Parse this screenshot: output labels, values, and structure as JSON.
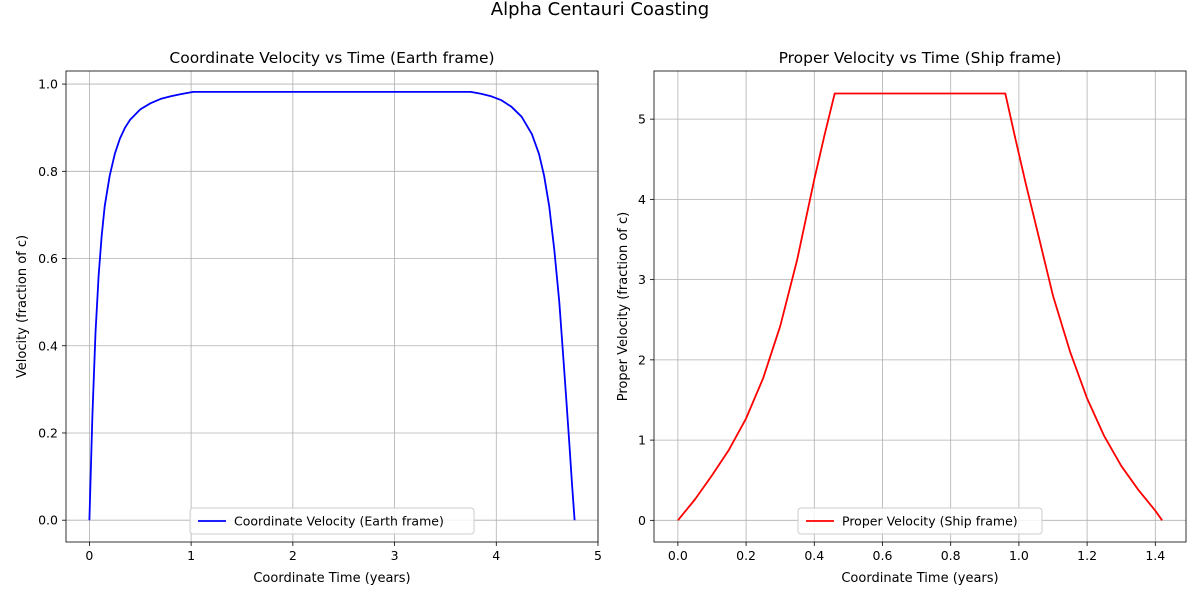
{
  "figure": {
    "suptitle": "Alpha Centauri Coasting"
  },
  "chart_data": [
    {
      "type": "line",
      "title": "Coordinate Velocity vs Time (Earth frame)",
      "xlabel": "Coordinate Time (years)",
      "ylabel": "Velocity (fraction of c)",
      "xlim": [
        -0.23,
        5.0
      ],
      "ylim": [
        -0.05,
        1.03
      ],
      "xticks": [
        0,
        1,
        2,
        3,
        4,
        5
      ],
      "xtick_labels": [
        "0",
        "1",
        "2",
        "3",
        "4",
        "5"
      ],
      "yticks": [
        0,
        0.2,
        0.4,
        0.6,
        0.8,
        1.0
      ],
      "ytick_labels": [
        "0.0",
        "0.2",
        "0.4",
        "0.6",
        "0.8",
        "1.0"
      ],
      "grid": true,
      "legend_position": "lower center",
      "series": [
        {
          "name": "Coordinate Velocity (Earth frame)",
          "color": "#0000ff",
          "x": [
            0,
            0.03,
            0.06,
            0.09,
            0.12,
            0.15,
            0.2,
            0.25,
            0.3,
            0.35,
            0.4,
            0.5,
            0.6,
            0.7,
            0.8,
            0.9,
            1.02,
            1.5,
            2.0,
            2.5,
            3.0,
            3.5,
            3.75,
            3.85,
            3.95,
            4.05,
            4.15,
            4.25,
            4.35,
            4.42,
            4.47,
            4.52,
            4.57,
            4.62,
            4.66,
            4.69,
            4.72,
            4.745,
            4.77
          ],
          "y": [
            0.0,
            0.24,
            0.43,
            0.56,
            0.65,
            0.72,
            0.79,
            0.84,
            0.875,
            0.9,
            0.918,
            0.942,
            0.956,
            0.966,
            0.972,
            0.977,
            0.982,
            0.982,
            0.982,
            0.982,
            0.982,
            0.982,
            0.982,
            0.978,
            0.972,
            0.963,
            0.948,
            0.925,
            0.885,
            0.84,
            0.79,
            0.72,
            0.62,
            0.5,
            0.37,
            0.27,
            0.17,
            0.08,
            0.0
          ]
        }
      ]
    },
    {
      "type": "line",
      "title": "Proper Velocity vs Time (Ship frame)",
      "xlabel": "Coordinate Time (years)",
      "ylabel": "Proper Velocity (fraction of c)",
      "xlim": [
        -0.07,
        1.49
      ],
      "ylim": [
        -0.27,
        5.6
      ],
      "xticks": [
        0,
        0.2,
        0.4,
        0.6,
        0.8,
        1.0,
        1.2,
        1.4
      ],
      "xtick_labels": [
        "0.0",
        "0.2",
        "0.4",
        "0.6",
        "0.8",
        "1.0",
        "1.2",
        "1.4"
      ],
      "yticks": [
        0,
        1,
        2,
        3,
        4,
        5
      ],
      "ytick_labels": [
        "0",
        "1",
        "2",
        "3",
        "4",
        "5"
      ],
      "grid": true,
      "legend_position": "lower center",
      "series": [
        {
          "name": "Proper Velocity (Ship frame)",
          "color": "#ff0000",
          "x": [
            0,
            0.05,
            0.1,
            0.15,
            0.2,
            0.25,
            0.3,
            0.35,
            0.4,
            0.43,
            0.46,
            0.6,
            0.8,
            0.96,
            0.99,
            1.02,
            1.06,
            1.1,
            1.15,
            1.2,
            1.25,
            1.3,
            1.35,
            1.4,
            1.42
          ],
          "y": [
            0.0,
            0.26,
            0.56,
            0.88,
            1.27,
            1.77,
            2.42,
            3.25,
            4.25,
            4.8,
            5.32,
            5.32,
            5.32,
            5.32,
            4.75,
            4.2,
            3.5,
            2.8,
            2.1,
            1.52,
            1.05,
            0.68,
            0.38,
            0.12,
            0.0
          ]
        }
      ]
    }
  ]
}
